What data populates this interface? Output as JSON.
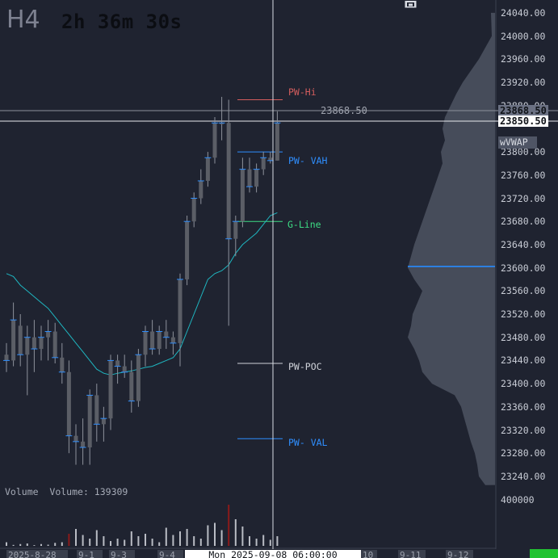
{
  "header": {
    "timeframe": "H4",
    "countdown": "2h 36m 30s"
  },
  "colors": {
    "background": "#1f2330",
    "candle_body": "#5b5e66",
    "ma_line": "#1fb6c0",
    "pw_hi": "#d35d5d",
    "pw_vah": "#2f8fff",
    "g_line": "#3ddc84",
    "pw_poc": "#cfd2d9",
    "pw_val": "#2f8fff",
    "volume_up": "#b9bcc4",
    "volume_down": "#8b1a1a",
    "profile": "#4e5462",
    "profile_marker": "#2d7fe0"
  },
  "levels": {
    "pw_hi": "PW-Hi",
    "pw_vah": "PW- VAH",
    "g_line": "G-Line",
    "pw_poc": "PW-POC",
    "pw_val": "PW- VAL"
  },
  "crosshair": {
    "price_note": "23868.50",
    "current_price": "23850.50",
    "hover_price": "23868.50"
  },
  "price_axis": {
    "labels": [
      "24040.00",
      "24000.00",
      "23960.00",
      "23920.00",
      "23880.00",
      "23800.00",
      "23760.00",
      "23720.00",
      "23680.00",
      "23640.00",
      "23600.00",
      "23560.00",
      "23520.00",
      "23480.00",
      "23440.00",
      "23400.00",
      "23360.00",
      "23320.00",
      "23280.00",
      "23240.00"
    ],
    "vwap_tag": "wVWAP"
  },
  "volume": {
    "label": "Volume",
    "readout": "Volume: 139309",
    "axis_label": "400000"
  },
  "time_axis": {
    "items": [
      "2025-8-28",
      "9-1",
      "9-3",
      "9-4",
      "10",
      "9-11",
      "9-12"
    ],
    "crosshair_time": "Mon 2025-09-08  06:00:00"
  },
  "chart_data": {
    "type": "candlestick",
    "timeframe": "H4",
    "y_unit": "price",
    "ylim": [
      23220,
      24060
    ],
    "candles": [
      {
        "o": 23450,
        "h": 23470,
        "l": 23420,
        "c": 23440
      },
      {
        "o": 23440,
        "h": 23540,
        "l": 23430,
        "c": 23510
      },
      {
        "o": 23500,
        "h": 23520,
        "l": 23430,
        "c": 23450
      },
      {
        "o": 23450,
        "h": 23500,
        "l": 23380,
        "c": 23480
      },
      {
        "o": 23480,
        "h": 23510,
        "l": 23420,
        "c": 23460
      },
      {
        "o": 23460,
        "h": 23500,
        "l": 23440,
        "c": 23480
      },
      {
        "o": 23480,
        "h": 23510,
        "l": 23440,
        "c": 23490
      },
      {
        "o": 23490,
        "h": 23505,
        "l": 23435,
        "c": 23445
      },
      {
        "o": 23445,
        "h": 23470,
        "l": 23400,
        "c": 23420
      },
      {
        "o": 23420,
        "h": 23440,
        "l": 23280,
        "c": 23310
      },
      {
        "o": 23310,
        "h": 23330,
        "l": 23260,
        "c": 23300
      },
      {
        "o": 23300,
        "h": 23340,
        "l": 23260,
        "c": 23290
      },
      {
        "o": 23290,
        "h": 23390,
        "l": 23260,
        "c": 23380
      },
      {
        "o": 23380,
        "h": 23400,
        "l": 23300,
        "c": 23330
      },
      {
        "o": 23330,
        "h": 23360,
        "l": 23300,
        "c": 23340
      },
      {
        "o": 23340,
        "h": 23450,
        "l": 23320,
        "c": 23440
      },
      {
        "o": 23440,
        "h": 23450,
        "l": 23400,
        "c": 23430
      },
      {
        "o": 23430,
        "h": 23450,
        "l": 23410,
        "c": 23420
      },
      {
        "o": 23420,
        "h": 23440,
        "l": 23350,
        "c": 23370
      },
      {
        "o": 23370,
        "h": 23460,
        "l": 23360,
        "c": 23450
      },
      {
        "o": 23450,
        "h": 23500,
        "l": 23430,
        "c": 23490
      },
      {
        "o": 23490,
        "h": 23510,
        "l": 23450,
        "c": 23460
      },
      {
        "o": 23460,
        "h": 23500,
        "l": 23450,
        "c": 23490
      },
      {
        "o": 23490,
        "h": 23510,
        "l": 23460,
        "c": 23480
      },
      {
        "o": 23480,
        "h": 23490,
        "l": 23450,
        "c": 23470
      },
      {
        "o": 23470,
        "h": 23590,
        "l": 23430,
        "c": 23580
      },
      {
        "o": 23580,
        "h": 23690,
        "l": 23570,
        "c": 23680
      },
      {
        "o": 23680,
        "h": 23730,
        "l": 23670,
        "c": 23720
      },
      {
        "o": 23720,
        "h": 23770,
        "l": 23710,
        "c": 23750
      },
      {
        "o": 23750,
        "h": 23800,
        "l": 23740,
        "c": 23790
      },
      {
        "o": 23790,
        "h": 23860,
        "l": 23780,
        "c": 23850
      },
      {
        "o": 23850,
        "h": 23895,
        "l": 23820,
        "c": 23850
      },
      {
        "o": 23850,
        "h": 23890,
        "l": 23500,
        "c": 23650
      },
      {
        "o": 23650,
        "h": 23690,
        "l": 23620,
        "c": 23680
      },
      {
        "o": 23680,
        "h": 23790,
        "l": 23670,
        "c": 23770
      },
      {
        "o": 23770,
        "h": 23790,
        "l": 23730,
        "c": 23740
      },
      {
        "o": 23740,
        "h": 23780,
        "l": 23730,
        "c": 23770
      },
      {
        "o": 23770,
        "h": 23800,
        "l": 23760,
        "c": 23790
      },
      {
        "o": 23790,
        "h": 23800,
        "l": 23780,
        "c": 23785
      },
      {
        "o": 23785,
        "h": 23870,
        "l": 23785,
        "c": 23850
      }
    ],
    "ma": [
      23590,
      23585,
      23570,
      23560,
      23550,
      23540,
      23530,
      23515,
      23500,
      23485,
      23470,
      23455,
      23440,
      23425,
      23418,
      23415,
      23418,
      23420,
      23422,
      23425,
      23428,
      23430,
      23435,
      23440,
      23445,
      23460,
      23490,
      23520,
      23550,
      23580,
      23590,
      23595,
      23605,
      23625,
      23640,
      23650,
      23660,
      23675,
      23690,
      23695
    ],
    "volume": [
      3000,
      800,
      1500,
      2000,
      600,
      1500,
      1000,
      2500,
      3000,
      10000,
      14000,
      9000,
      6000,
      13000,
      8000,
      4000,
      6000,
      5000,
      12000,
      8000,
      10000,
      6000,
      3000,
      15000,
      9000,
      12000,
      14000,
      8000,
      6000,
      17000,
      19000,
      13000,
      34000,
      22000,
      16000,
      8000,
      6000,
      9000,
      5000,
      8000
    ],
    "volume_down_index": [
      9,
      32
    ],
    "levels": {
      "pw_hi": 23890,
      "pw_vah": 23800,
      "g_line": 23680,
      "pw_poc": 23435,
      "pw_val": 23305
    },
    "volume_profile": [
      [
        24040,
        5
      ],
      [
        24000,
        4
      ],
      [
        23960,
        20
      ],
      [
        23920,
        40
      ],
      [
        23900,
        48
      ],
      [
        23880,
        55
      ],
      [
        23860,
        62
      ],
      [
        23840,
        65
      ],
      [
        23820,
        62
      ],
      [
        23800,
        67
      ],
      [
        23780,
        65
      ],
      [
        23760,
        70
      ],
      [
        23740,
        75
      ],
      [
        23720,
        80
      ],
      [
        23700,
        85
      ],
      [
        23680,
        90
      ],
      [
        23660,
        95
      ],
      [
        23640,
        100
      ],
      [
        23620,
        104
      ],
      [
        23600,
        108
      ],
      [
        23580,
        100
      ],
      [
        23560,
        90
      ],
      [
        23540,
        96
      ],
      [
        23520,
        102
      ],
      [
        23500,
        104
      ],
      [
        23480,
        108
      ],
      [
        23460,
        100
      ],
      [
        23440,
        94
      ],
      [
        23420,
        90
      ],
      [
        23400,
        78
      ],
      [
        23380,
        50
      ],
      [
        23360,
        42
      ],
      [
        23340,
        38
      ],
      [
        23320,
        34
      ],
      [
        23300,
        30
      ],
      [
        23280,
        25
      ],
      [
        23260,
        22
      ],
      [
        23240,
        20
      ],
      [
        23225,
        12
      ]
    ]
  }
}
